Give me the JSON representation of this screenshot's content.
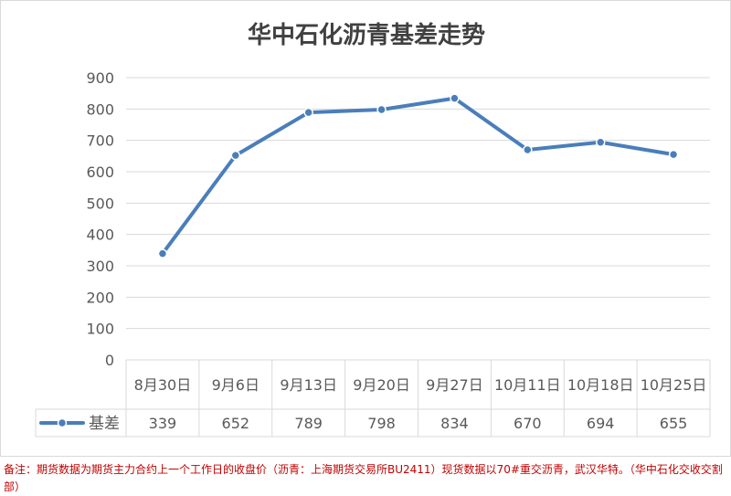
{
  "chart_data": {
    "type": "line",
    "title": "华中石化沥青基差走势",
    "categories": [
      "8月30日",
      "9月6日",
      "9月13日",
      "9月20日",
      "9月27日",
      "10月11日",
      "10月18日",
      "10月25日"
    ],
    "series": [
      {
        "name": "基差",
        "values": [
          339,
          652,
          789,
          798,
          834,
          670,
          694,
          655
        ],
        "color": "#4a7ebb"
      }
    ],
    "xlabel": "",
    "ylabel": "",
    "ylim": [
      0,
      900
    ],
    "yticks": [
      "0",
      "100",
      "200",
      "300",
      "400",
      "500",
      "600",
      "700",
      "800",
      "900"
    ],
    "grid": true,
    "data_table": true
  },
  "footnote": "备注：期货数据为期货主力合约上一个工作日的收盘价（沥青：上海期货交易所BU2411）现货数据以70#重交沥青，武汉华特。（华中石化交收交割部）"
}
